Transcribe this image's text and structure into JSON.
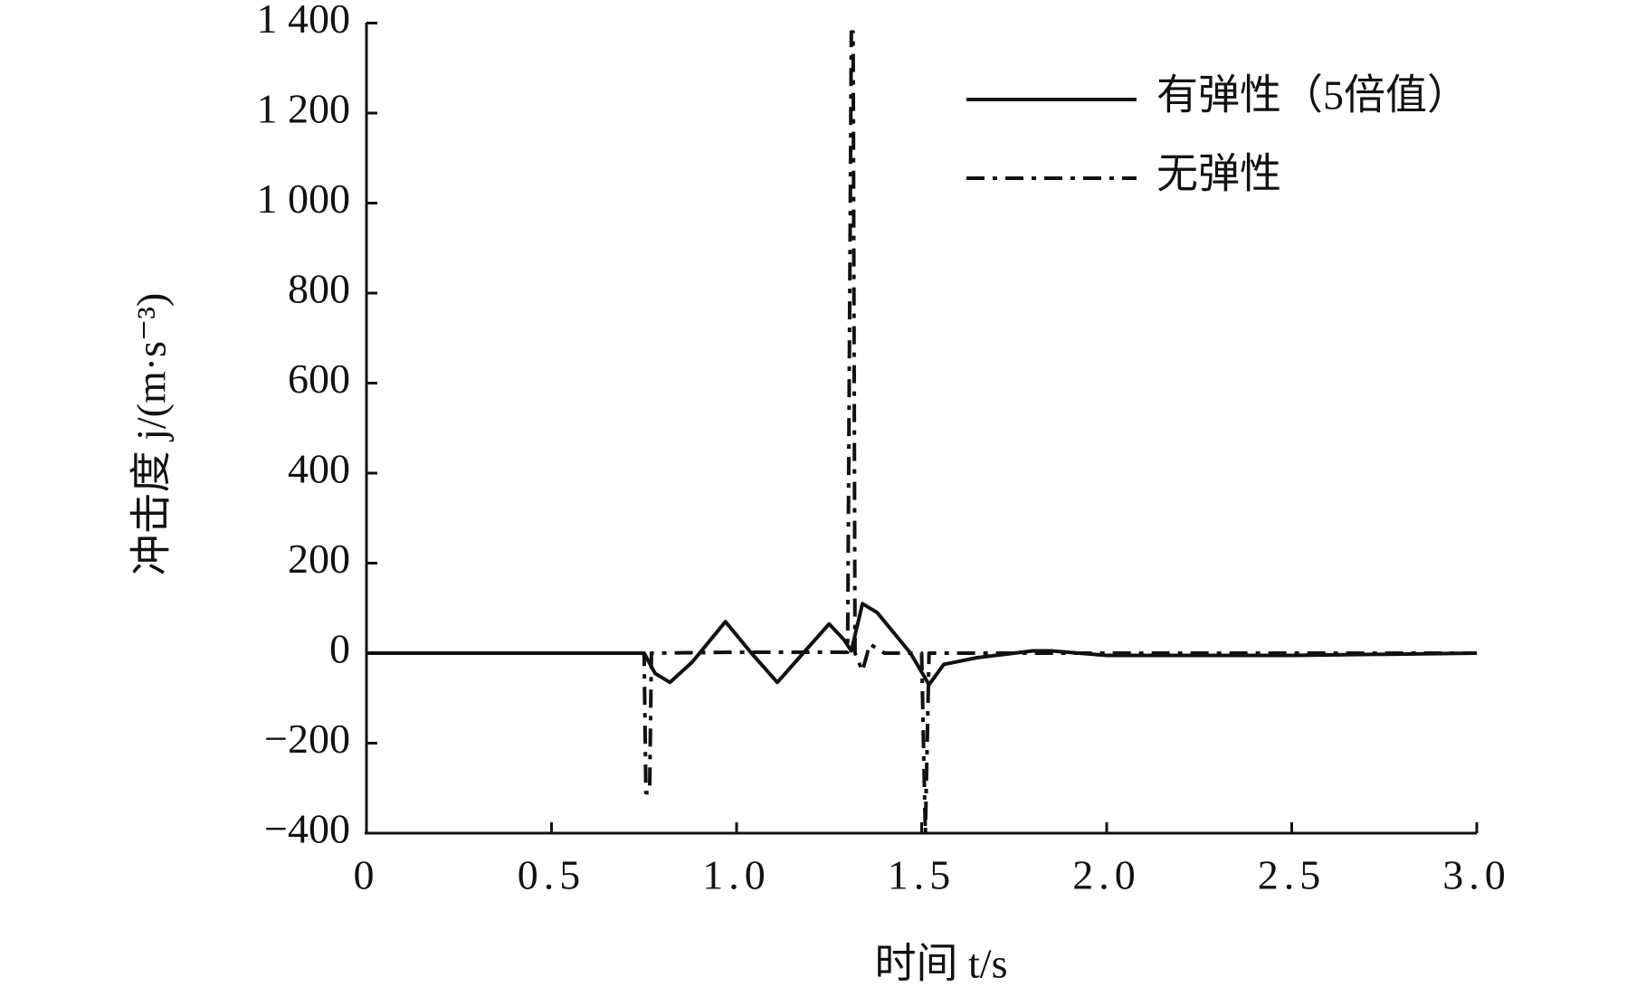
{
  "chart_data": {
    "type": "line",
    "xlabel": "时间 t/s",
    "ylabel": "冲击度 j/(m·s⁻³)",
    "xlim": [
      0,
      3
    ],
    "ylim": [
      -400,
      1400
    ],
    "xticks": [
      0,
      0.5,
      {
        "value": 1,
        "label": "1.0"
      },
      1.5,
      {
        "value": 2,
        "label": "2.0"
      },
      2.5,
      {
        "value": 3,
        "label": "3.0"
      }
    ],
    "yticks": [
      {
        "value": -400,
        "label": "−400"
      },
      {
        "value": -200,
        "label": "−200"
      },
      0,
      200,
      400,
      600,
      800,
      {
        "value": 1000,
        "label": "1 000"
      },
      {
        "value": 1200,
        "label": "1 200"
      },
      {
        "value": 1400,
        "label": "1 400"
      }
    ],
    "legend": "upper right",
    "series": [
      {
        "name": "有弹性（5倍值）",
        "color": "#111111",
        "style": "solid",
        "x": [
          0,
          0.75,
          0.78,
          0.82,
          0.88,
          0.97,
          1.04,
          1.11,
          1.18,
          1.25,
          1.29,
          1.31,
          1.34,
          1.38,
          1.43,
          1.47,
          1.52,
          1.56,
          1.65,
          1.8,
          1.85,
          2.0,
          2.5,
          3.0
        ],
        "values": [
          0,
          0,
          -45,
          -65,
          -20,
          70,
          0,
          -65,
          0,
          65,
          30,
          5,
          110,
          90,
          40,
          0,
          -70,
          -25,
          -10,
          5,
          5,
          -5,
          -5,
          0
        ]
      },
      {
        "name": "无弹性",
        "color": "#111111",
        "style": "dashdot",
        "x": [
          0,
          0.75,
          0.755,
          0.765,
          0.77,
          1.0,
          1.3,
          1.31,
          1.315,
          1.32,
          1.34,
          1.36,
          1.4,
          1.5,
          1.51,
          1.52,
          2.0,
          3.0
        ],
        "values": [
          0,
          0,
          -310,
          -310,
          0,
          2,
          2,
          1380,
          1380,
          0,
          -40,
          20,
          0,
          0,
          -400,
          0,
          0,
          0
        ]
      }
    ]
  }
}
